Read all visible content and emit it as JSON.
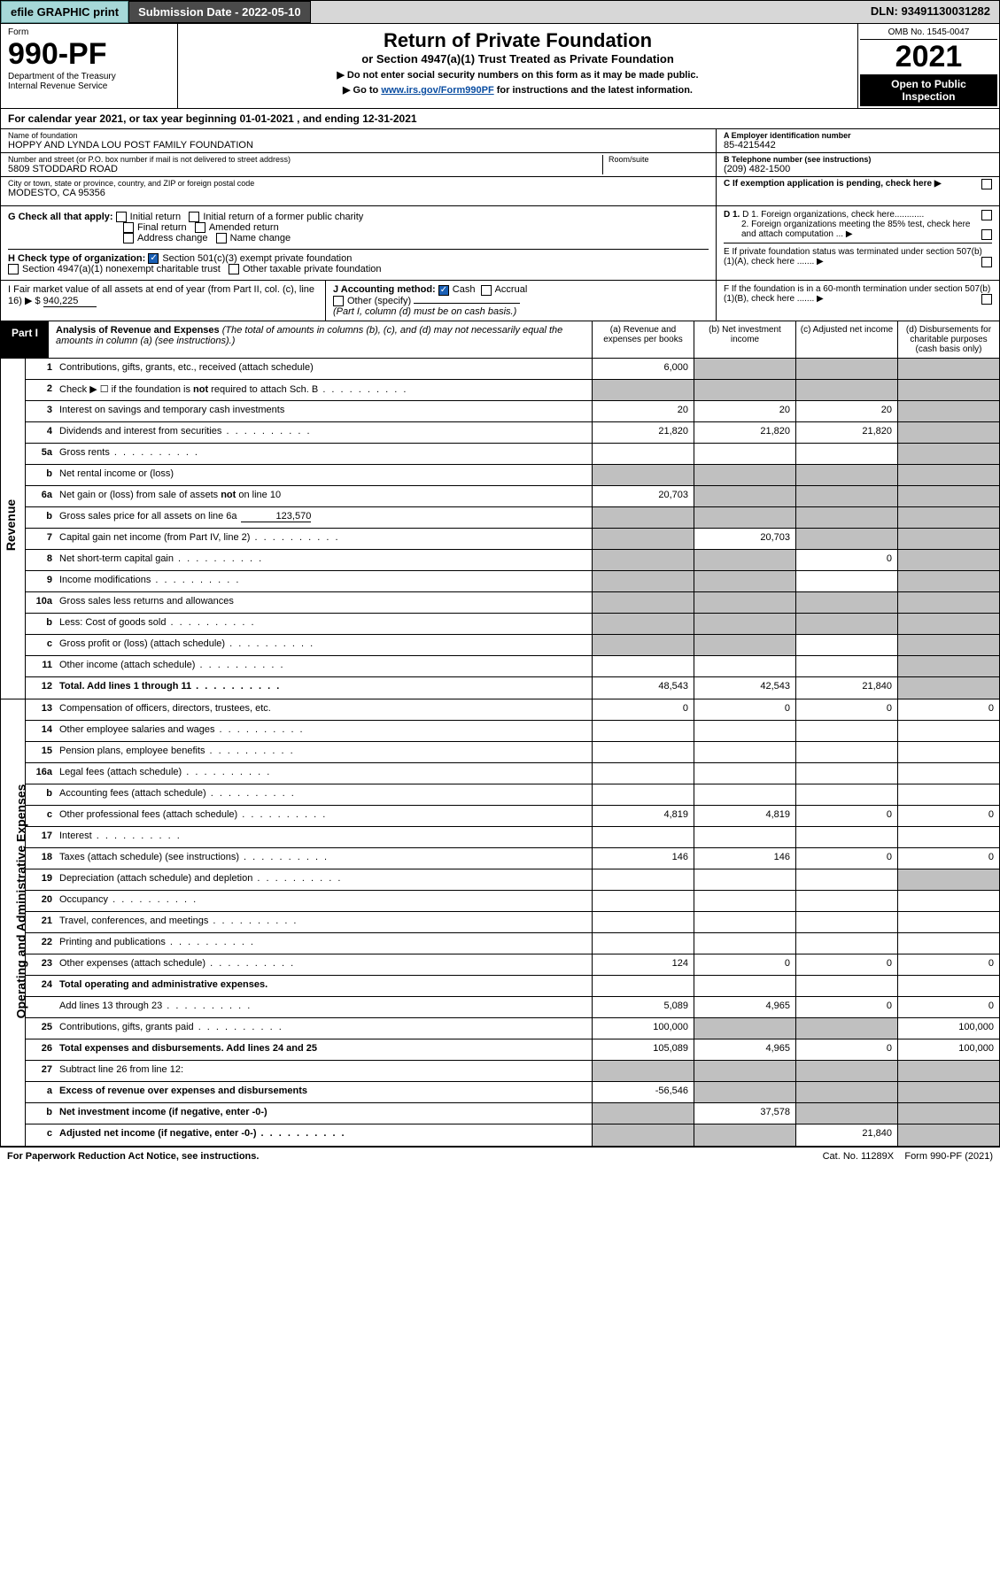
{
  "topbar": {
    "efile": "efile GRAPHIC print",
    "submission": "Submission Date - 2022-05-10",
    "dln": "DLN: 93491130031282"
  },
  "header": {
    "form_label": "Form",
    "form_number": "990-PF",
    "dept": "Department of the Treasury",
    "irs": "Internal Revenue Service",
    "title": "Return of Private Foundation",
    "subtitle": "or Section 4947(a)(1) Trust Treated as Private Foundation",
    "note1": "▶ Do not enter social security numbers on this form as it may be made public.",
    "note2_pre": "▶ Go to ",
    "note2_link": "www.irs.gov/Form990PF",
    "note2_post": " for instructions and the latest information.",
    "omb": "OMB No. 1545-0047",
    "year": "2021",
    "open": "Open to Public Inspection"
  },
  "calyear": {
    "pre": "For calendar year 2021, or tax year beginning ",
    "begin": "01-01-2021",
    "mid": " , and ending ",
    "end": "12-31-2021"
  },
  "id": {
    "name_label": "Name of foundation",
    "name": "HOPPY AND LYNDA LOU POST FAMILY FOUNDATION",
    "addr_label": "Number and street (or P.O. box number if mail is not delivered to street address)",
    "addr": "5809 STODDARD ROAD",
    "room_label": "Room/suite",
    "city_label": "City or town, state or province, country, and ZIP or foreign postal code",
    "city": "MODESTO, CA  95356",
    "ein_label": "A Employer identification number",
    "ein": "85-4215442",
    "phone_label": "B Telephone number (see instructions)",
    "phone": "(209) 482-1500",
    "c_label": "C If exemption application is pending, check here ▶"
  },
  "section_G": {
    "label": "G Check all that apply:",
    "opts": [
      "Initial return",
      "Initial return of a former public charity",
      "Final return",
      "Amended return",
      "Address change",
      "Name change"
    ]
  },
  "section_D": {
    "d1": "D 1. Foreign organizations, check here............",
    "d2": "2. Foreign organizations meeting the 85% test, check here and attach computation ...",
    "e": "E  If private foundation status was terminated under section 507(b)(1)(A), check here .......",
    "f": "F  If the foundation is in a 60-month termination under section 507(b)(1)(B), check here ......."
  },
  "section_H": {
    "label": "H Check type of organization:",
    "opt1": "Section 501(c)(3) exempt private foundation",
    "opt2": "Section 4947(a)(1) nonexempt charitable trust",
    "opt3": "Other taxable private foundation"
  },
  "section_I": {
    "label": "I Fair market value of all assets at end of year (from Part II, col. (c), line 16) ▶ $",
    "value": "940,225"
  },
  "section_J": {
    "label": "J Accounting method:",
    "cash": "Cash",
    "accrual": "Accrual",
    "other": "Other (specify)",
    "note": "(Part I, column (d) must be on cash basis.)"
  },
  "part1": {
    "tab": "Part I",
    "title": "Analysis of Revenue and Expenses",
    "note": "(The total of amounts in columns (b), (c), and (d) may not necessarily equal the amounts in column (a) (see instructions).)",
    "col_a": "(a)   Revenue and expenses per books",
    "col_b": "(b)   Net investment income",
    "col_c": "(c)   Adjusted net income",
    "col_d": "(d)   Disbursements for charitable purposes (cash basis only)"
  },
  "side_labels": {
    "revenue": "Revenue",
    "expenses": "Operating and Administrative Expenses"
  },
  "lines": {
    "1": {
      "n": "1",
      "t": "Contributions, gifts, grants, etc., received (attach schedule)",
      "a": "6,000",
      "b_grey": true,
      "c_grey": true,
      "d_grey": true
    },
    "2": {
      "n": "2",
      "t": "Check ▶ ☐ if the foundation is not required to attach Sch. B",
      "dots": true,
      "a_grey": true,
      "b_grey": true,
      "c_grey": true,
      "d_grey": true
    },
    "3": {
      "n": "3",
      "t": "Interest on savings and temporary cash investments",
      "a": "20",
      "b": "20",
      "c": "20",
      "d_grey": true
    },
    "4": {
      "n": "4",
      "t": "Dividends and interest from securities",
      "dots": true,
      "a": "21,820",
      "b": "21,820",
      "c": "21,820",
      "d_grey": true
    },
    "5a": {
      "n": "5a",
      "t": "Gross rents",
      "dots": true,
      "d_grey": true
    },
    "5b": {
      "n": "b",
      "t": "Net rental income or (loss)",
      "a_grey": true,
      "b_grey": true,
      "c_grey": true,
      "d_grey": true
    },
    "6a": {
      "n": "6a",
      "t": "Net gain or (loss) from sale of assets not on line 10",
      "a": "20,703",
      "b_grey": true,
      "c_grey": true,
      "d_grey": true
    },
    "6b": {
      "n": "b",
      "t": "Gross sales price for all assets on line 6a",
      "inline_val": "123,570",
      "a_grey": true,
      "b_grey": true,
      "c_grey": true,
      "d_grey": true
    },
    "7": {
      "n": "7",
      "t": "Capital gain net income (from Part IV, line 2)",
      "dots": true,
      "a_grey": true,
      "b": "20,703",
      "c_grey": true,
      "d_grey": true
    },
    "8": {
      "n": "8",
      "t": "Net short-term capital gain",
      "dots": true,
      "a_grey": true,
      "b_grey": true,
      "c": "0",
      "d_grey": true
    },
    "9": {
      "n": "9",
      "t": "Income modifications",
      "dots": true,
      "a_grey": true,
      "b_grey": true,
      "d_grey": true
    },
    "10a": {
      "n": "10a",
      "t": "Gross sales less returns and allowances",
      "a_grey": true,
      "b_grey": true,
      "c_grey": true,
      "d_grey": true
    },
    "10b": {
      "n": "b",
      "t": "Less: Cost of goods sold",
      "dots": true,
      "a_grey": true,
      "b_grey": true,
      "c_grey": true,
      "d_grey": true
    },
    "10c": {
      "n": "c",
      "t": "Gross profit or (loss) (attach schedule)",
      "dots": true,
      "a_grey": true,
      "b_grey": true,
      "d_grey": true
    },
    "11": {
      "n": "11",
      "t": "Other income (attach schedule)",
      "dots": true,
      "d_grey": true
    },
    "12": {
      "n": "12",
      "t": "Total. Add lines 1 through 11",
      "dots": true,
      "bold": true,
      "a": "48,543",
      "b": "42,543",
      "c": "21,840",
      "d_grey": true
    },
    "13": {
      "n": "13",
      "t": "Compensation of officers, directors, trustees, etc.",
      "a": "0",
      "b": "0",
      "c": "0",
      "d": "0"
    },
    "14": {
      "n": "14",
      "t": "Other employee salaries and wages",
      "dots": true
    },
    "15": {
      "n": "15",
      "t": "Pension plans, employee benefits",
      "dots": true
    },
    "16a": {
      "n": "16a",
      "t": "Legal fees (attach schedule)",
      "dots": true
    },
    "16b": {
      "n": "b",
      "t": "Accounting fees (attach schedule)",
      "dots": true
    },
    "16c": {
      "n": "c",
      "t": "Other professional fees (attach schedule)",
      "dots": true,
      "a": "4,819",
      "b": "4,819",
      "c": "0",
      "d": "0"
    },
    "17": {
      "n": "17",
      "t": "Interest",
      "dots": true
    },
    "18": {
      "n": "18",
      "t": "Taxes (attach schedule) (see instructions)",
      "dots": true,
      "a": "146",
      "b": "146",
      "c": "0",
      "d": "0"
    },
    "19": {
      "n": "19",
      "t": "Depreciation (attach schedule) and depletion",
      "dots": true,
      "d_grey": true
    },
    "20": {
      "n": "20",
      "t": "Occupancy",
      "dots": true
    },
    "21": {
      "n": "21",
      "t": "Travel, conferences, and meetings",
      "dots": true
    },
    "22": {
      "n": "22",
      "t": "Printing and publications",
      "dots": true
    },
    "23": {
      "n": "23",
      "t": "Other expenses (attach schedule)",
      "dots": true,
      "a": "124",
      "b": "0",
      "c": "0",
      "d": "0"
    },
    "24": {
      "n": "24",
      "t": "Total operating and administrative expenses.",
      "bold": true,
      "a_grey": false
    },
    "24s": {
      "n": "",
      "t": "Add lines 13 through 23",
      "dots": true,
      "a": "5,089",
      "b": "4,965",
      "c": "0",
      "d": "0"
    },
    "25": {
      "n": "25",
      "t": "Contributions, gifts, grants paid",
      "dots": true,
      "a": "100,000",
      "b_grey": true,
      "c_grey": true,
      "d": "100,000"
    },
    "26": {
      "n": "26",
      "t": "Total expenses and disbursements. Add lines 24 and 25",
      "bold": true,
      "a": "105,089",
      "b": "4,965",
      "c": "0",
      "d": "100,000"
    },
    "27": {
      "n": "27",
      "t": "Subtract line 26 from line 12:",
      "a_grey": true,
      "b_grey": true,
      "c_grey": true,
      "d_grey": true
    },
    "27a": {
      "n": "a",
      "t": "Excess of revenue over expenses and disbursements",
      "bold": true,
      "a": "-56,546",
      "b_grey": true,
      "c_grey": true,
      "d_grey": true
    },
    "27b": {
      "n": "b",
      "t": "Net investment income (if negative, enter -0-)",
      "bold": true,
      "a_grey": true,
      "b": "37,578",
      "c_grey": true,
      "d_grey": true
    },
    "27c": {
      "n": "c",
      "t": "Adjusted net income (if negative, enter -0-)",
      "bold": true,
      "dots": true,
      "a_grey": true,
      "b_grey": true,
      "c": "21,840",
      "d_grey": true
    }
  },
  "footer": {
    "left": "For Paperwork Reduction Act Notice, see instructions.",
    "cat": "Cat. No. 11289X",
    "form": "Form 990-PF (2021)"
  },
  "colors": {
    "grey_cell": "#c0c0c0",
    "link": "#0b4ea2",
    "teal_btn": "#a6d8d8",
    "dark_chip": "#4a4a4a"
  }
}
